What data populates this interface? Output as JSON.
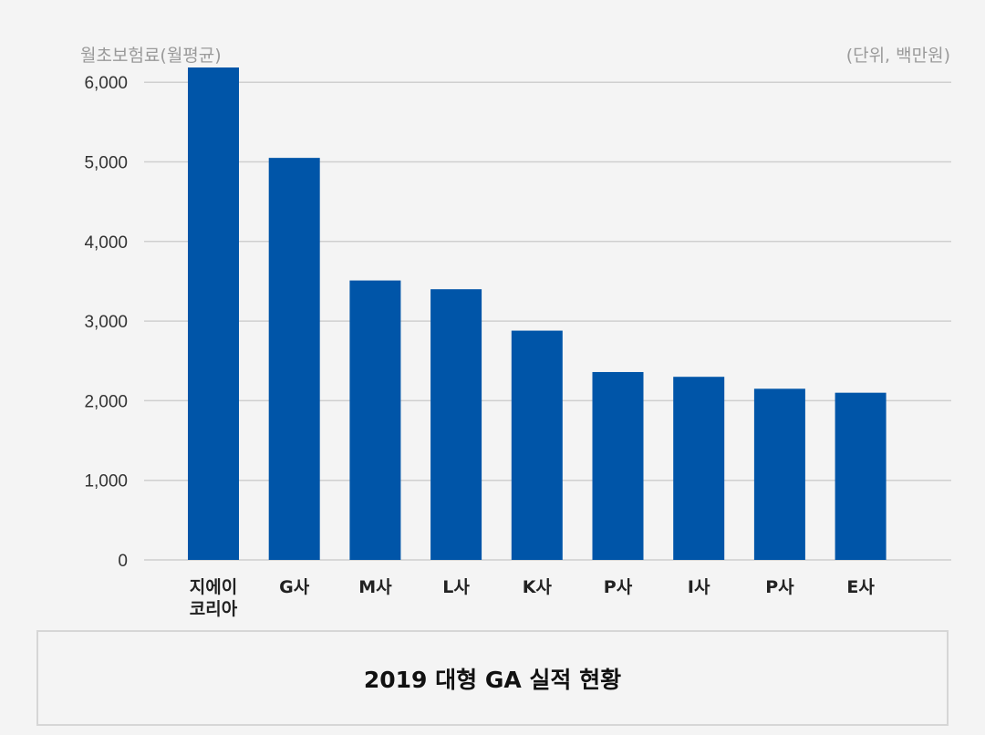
{
  "chart_data": {
    "type": "bar",
    "ylabel": "월초보험료(월평균)",
    "unit": "(단위, 백만원)",
    "yticks": [
      0,
      1000,
      2000,
      3000,
      4000,
      5000,
      6000
    ],
    "ytick_labels": [
      "0",
      "1,000",
      "2,000",
      "3,000",
      "4,000",
      "5,000",
      "6,000"
    ],
    "ylim": [
      0,
      6500
    ],
    "categories": [
      "지에이\n코리아",
      "G사",
      "M사",
      "L사",
      "K사",
      "P사",
      "I사",
      "P사",
      "E사"
    ],
    "values": [
      6500,
      5050,
      3510,
      3400,
      2880,
      2360,
      2300,
      2150,
      2100
    ],
    "bar_color": "#0055a8",
    "grid": true
  },
  "caption": "2019 대형 GA 실적 현황"
}
